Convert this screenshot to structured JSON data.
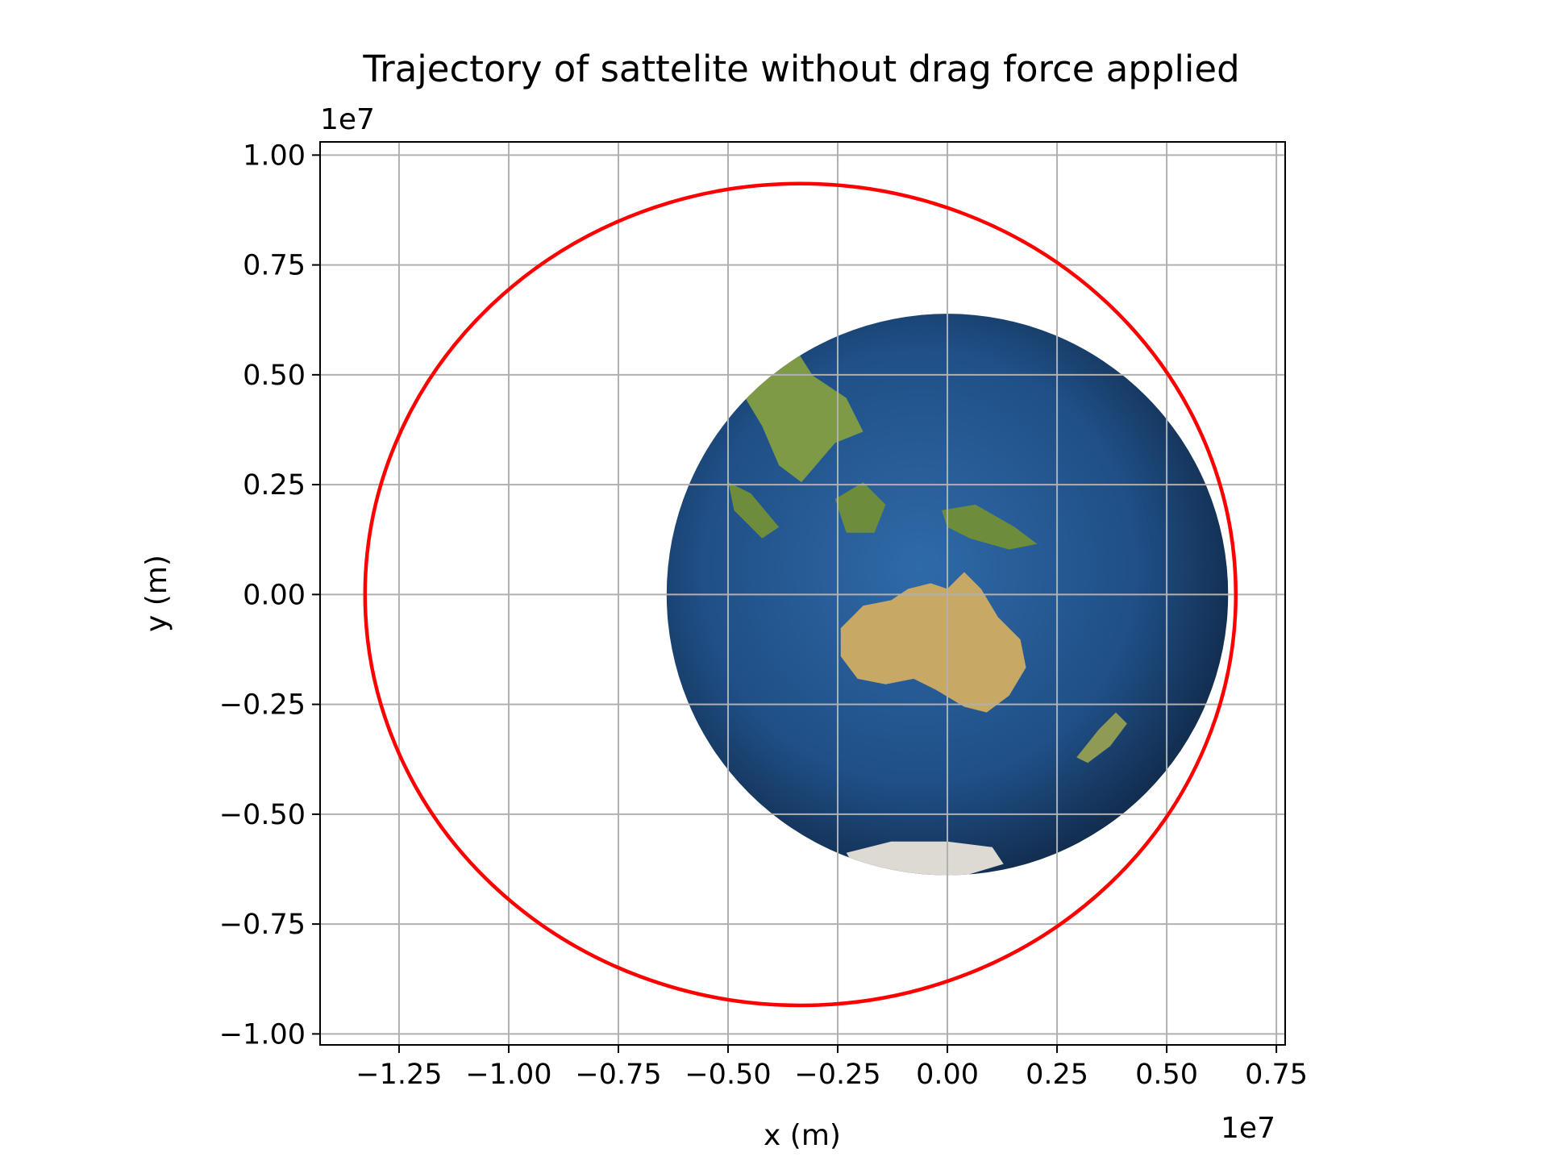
{
  "chart_data": {
    "type": "line",
    "title": "Trajectory of sattelite without drag force applied",
    "xlabel": "x (m)",
    "ylabel": "y (m)",
    "x_offset_text": "1e7",
    "y_offset_text": "1e7",
    "xlim": [
      -1.43,
      0.77
    ],
    "ylim": [
      -1.025,
      1.03
    ],
    "xticks": [
      -1.25,
      -1.0,
      -0.75,
      -0.5,
      -0.25,
      0.0,
      0.25,
      0.5,
      0.75
    ],
    "xtick_labels": [
      "−1.25",
      "−1.00",
      "−0.75",
      "−0.50",
      "−0.25",
      "0.00",
      "0.25",
      "0.50",
      "0.75"
    ],
    "yticks": [
      1.0,
      0.75,
      0.5,
      0.25,
      0.0,
      -0.25,
      -0.5,
      -0.75,
      -1.0
    ],
    "ytick_labels": [
      "1.00",
      "0.75",
      "0.50",
      "0.25",
      "0.00",
      "−0.25",
      "−0.50",
      "−0.75",
      "−1.00"
    ],
    "grid": true,
    "series": [
      {
        "color": "#ff0000",
        "shape": "ellipse",
        "center": [
          -0.335,
          0.0
        ],
        "semi_axis_x": 0.9925,
        "semi_axis_y": 0.935
      }
    ],
    "background_image": {
      "icon": "earth-globe",
      "center": [
        0.0,
        0.0
      ],
      "radius": 0.64
    }
  }
}
